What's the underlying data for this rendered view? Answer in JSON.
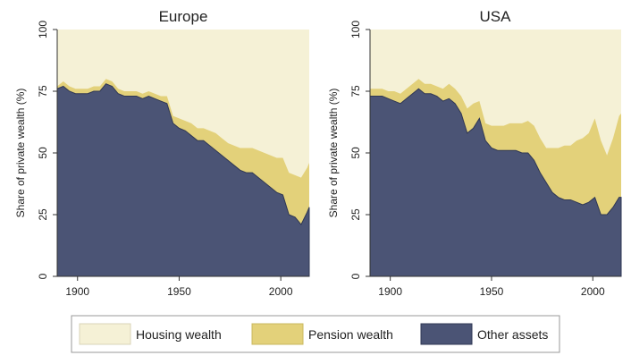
{
  "chart_data": [
    {
      "type": "area",
      "stacked": true,
      "title": "Europe",
      "xlabel": "",
      "ylabel": "Share of private wealth (%)",
      "xlim": [
        1890,
        2014
      ],
      "ylim": [
        0,
        100
      ],
      "xticks": [
        1900,
        1950,
        2000
      ],
      "yticks": [
        0,
        25,
        50,
        75,
        100
      ],
      "ytick_labels": [
        "0",
        "25",
        "50",
        "75",
        "100"
      ],
      "x": [
        1890,
        1893,
        1896,
        1899,
        1902,
        1905,
        1908,
        1911,
        1914,
        1917,
        1920,
        1923,
        1926,
        1929,
        1932,
        1935,
        1938,
        1941,
        1944,
        1947,
        1950,
        1953,
        1956,
        1959,
        1962,
        1965,
        1968,
        1971,
        1974,
        1977,
        1980,
        1983,
        1986,
        1989,
        1992,
        1995,
        1998,
        2001,
        2004,
        2007,
        2010,
        2013,
        2014
      ],
      "series": [
        {
          "name": "Other assets",
          "values": [
            76,
            77,
            75,
            74,
            74,
            74,
            75,
            75,
            78,
            77,
            74,
            73,
            73,
            73,
            72,
            73,
            72,
            71,
            70,
            62,
            60,
            59,
            57,
            55,
            55,
            53,
            51,
            49,
            47,
            45,
            43,
            42,
            42,
            40,
            38,
            36,
            34,
            33,
            25,
            24,
            21,
            26,
            28
          ]
        },
        {
          "name": "Pension wealth",
          "values": [
            1,
            2,
            2,
            2,
            2,
            2,
            2,
            2,
            2,
            2,
            2,
            2,
            2,
            2,
            2,
            2,
            2,
            2,
            3,
            3,
            4,
            4,
            5,
            5,
            5,
            6,
            7,
            7,
            7,
            8,
            9,
            10,
            10,
            11,
            12,
            13,
            14,
            15,
            17,
            17,
            19,
            18,
            18
          ]
        },
        {
          "name": "Housing wealth",
          "values": [
            23,
            21,
            23,
            24,
            24,
            24,
            23,
            23,
            20,
            21,
            24,
            25,
            25,
            25,
            26,
            25,
            26,
            27,
            27,
            35,
            36,
            37,
            38,
            40,
            40,
            41,
            42,
            44,
            46,
            47,
            48,
            48,
            48,
            49,
            50,
            51,
            52,
            52,
            58,
            59,
            60,
            56,
            54
          ]
        }
      ]
    },
    {
      "type": "area",
      "stacked": true,
      "title": "USA",
      "xlabel": "",
      "ylabel": "Share of private wealth (%)",
      "xlim": [
        1890,
        2014
      ],
      "ylim": [
        0,
        100
      ],
      "xticks": [
        1900,
        1950,
        2000
      ],
      "yticks": [
        0,
        25,
        50,
        75,
        100
      ],
      "ytick_labels": [
        "0",
        "25",
        "50",
        "75",
        "100"
      ],
      "x": [
        1890,
        1893,
        1896,
        1899,
        1902,
        1905,
        1908,
        1911,
        1914,
        1917,
        1920,
        1923,
        1926,
        1929,
        1932,
        1935,
        1938,
        1941,
        1944,
        1947,
        1950,
        1953,
        1956,
        1959,
        1962,
        1965,
        1968,
        1971,
        1974,
        1977,
        1980,
        1983,
        1986,
        1989,
        1992,
        1995,
        1998,
        2001,
        2004,
        2007,
        2010,
        2013,
        2014
      ],
      "series": [
        {
          "name": "Other assets",
          "values": [
            73,
            73,
            73,
            72,
            71,
            70,
            72,
            74,
            76,
            74,
            74,
            73,
            71,
            72,
            70,
            66,
            58,
            60,
            64,
            55,
            52,
            51,
            51,
            51,
            51,
            50,
            50,
            47,
            42,
            38,
            34,
            32,
            31,
            31,
            30,
            29,
            30,
            32,
            25,
            25,
            28,
            32,
            32
          ]
        },
        {
          "name": "Pension wealth",
          "values": [
            3,
            3,
            3,
            3,
            4,
            4,
            4,
            4,
            4,
            4,
            4,
            4,
            5,
            6,
            6,
            7,
            10,
            10,
            7,
            7,
            9,
            10,
            10,
            11,
            11,
            12,
            13,
            14,
            14,
            14,
            18,
            20,
            22,
            22,
            25,
            27,
            28,
            32,
            30,
            24,
            28,
            33,
            34
          ]
        },
        {
          "name": "Housing wealth",
          "values": [
            24,
            24,
            24,
            25,
            25,
            26,
            24,
            22,
            20,
            22,
            22,
            23,
            24,
            22,
            24,
            27,
            32,
            30,
            29,
            38,
            39,
            39,
            39,
            38,
            38,
            38,
            37,
            39,
            44,
            48,
            48,
            48,
            47,
            47,
            45,
            44,
            42,
            36,
            45,
            51,
            44,
            35,
            34
          ]
        }
      ]
    }
  ],
  "legend": {
    "items": [
      {
        "label": "Housing wealth",
        "color": "#f5f1d6"
      },
      {
        "label": "Pension wealth",
        "color": "#e3d17a"
      },
      {
        "label": "Other assets",
        "color": "#4b5475"
      }
    ]
  },
  "colors": {
    "housing": "#f5f1d6",
    "pension": "#e3d17a",
    "other": "#4b5475",
    "other_edge": "#2f3754",
    "axis": "#333333",
    "legend_border": "#999999"
  }
}
